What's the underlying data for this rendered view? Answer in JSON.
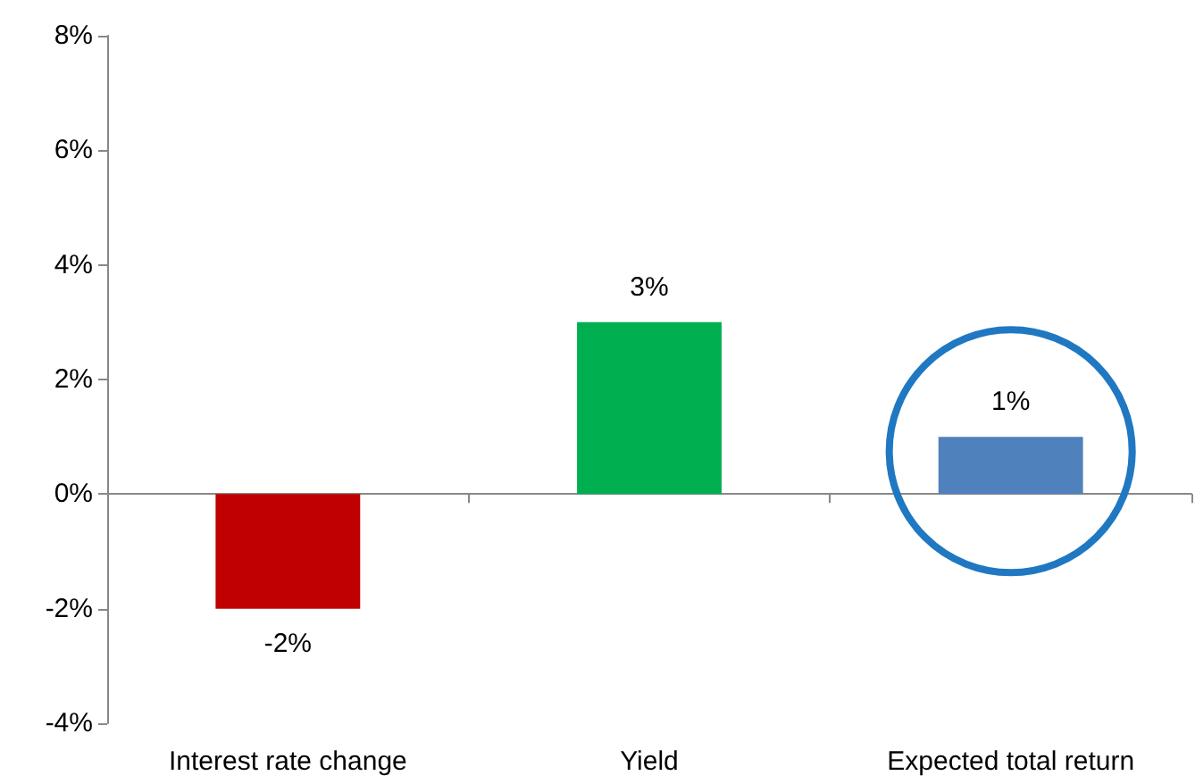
{
  "chart_data": {
    "type": "bar",
    "categories": [
      "Interest rate change",
      "Yield",
      "Expected total return"
    ],
    "values": [
      -2,
      3,
      1
    ],
    "colors": [
      "#c00000",
      "#00b050",
      "#4f81bd"
    ],
    "value_labels": [
      "-2%",
      "3%",
      "1%"
    ],
    "ylim": [
      -4,
      8
    ],
    "yticks": [
      {
        "value": -4,
        "label": "-4%"
      },
      {
        "value": -2,
        "label": "-2%"
      },
      {
        "value": 0,
        "label": "0%"
      },
      {
        "value": 2,
        "label": "2%"
      },
      {
        "value": 4,
        "label": "4%"
      },
      {
        "value": 6,
        "label": "6%"
      },
      {
        "value": 8,
        "label": "8%"
      }
    ],
    "tick_labels": [
      "x",
      "y"
    ]
  }
}
